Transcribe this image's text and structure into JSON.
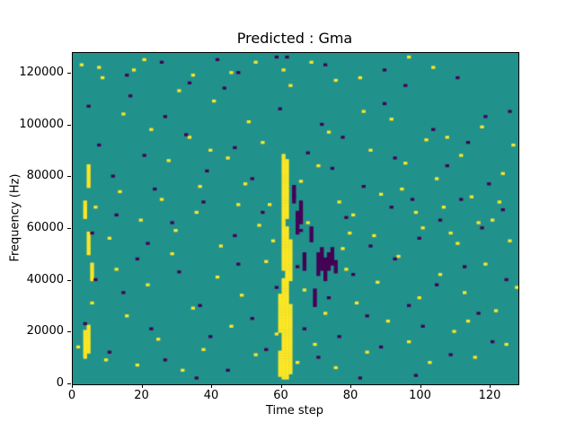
{
  "figure": {
    "title": "Predicted : Gma",
    "xlabel": "Time step",
    "ylabel": "Frequency (Hz)"
  },
  "chart_data": {
    "type": "heatmap",
    "title": "Predicted : Gma",
    "xlabel": "Time step",
    "ylabel": "Frequency (Hz)",
    "x_range": [
      0,
      128
    ],
    "y_range": [
      0,
      128000
    ],
    "x_ticks": [
      0,
      20,
      40,
      60,
      80,
      100,
      120
    ],
    "y_ticks": [
      0,
      20000,
      40000,
      60000,
      80000,
      100000,
      120000
    ],
    "grid": false,
    "legend": "none",
    "colors": {
      "background_value_color": "#21918c",
      "positive_color": "#fde725",
      "negative_color": "#440154",
      "figure_background": "#ffffff",
      "axis_color": "#000000"
    },
    "cell_grid": {
      "cols": 128,
      "rows": 128,
      "freq_per_row_hz": 1000
    },
    "yellow_runs": [
      {
        "x": 59,
        "y0": 3,
        "y1": 12
      },
      {
        "x": 59,
        "y0": 20,
        "y1": 34
      },
      {
        "x": 60,
        "y0": 2,
        "y1": 40
      },
      {
        "x": 60,
        "y0": 44,
        "y1": 88
      },
      {
        "x": 61,
        "y0": 2,
        "y1": 60
      },
      {
        "x": 61,
        "y0": 64,
        "y1": 86
      },
      {
        "x": 62,
        "y0": 4,
        "y1": 30
      },
      {
        "x": 62,
        "y0": 40,
        "y1": 55
      },
      {
        "x": 3,
        "y0": 10,
        "y1": 20
      },
      {
        "x": 4,
        "y0": 12,
        "y1": 22
      },
      {
        "x": 4,
        "y0": 50,
        "y1": 58
      },
      {
        "x": 3,
        "y0": 64,
        "y1": 70
      },
      {
        "x": 4,
        "y0": 76,
        "y1": 84
      },
      {
        "x": 5,
        "y0": 40,
        "y1": 46
      }
    ],
    "purple_runs": [
      {
        "x": 70,
        "y0": 42,
        "y1": 50
      },
      {
        "x": 71,
        "y0": 44,
        "y1": 52
      },
      {
        "x": 72,
        "y0": 40,
        "y1": 48
      },
      {
        "x": 73,
        "y0": 44,
        "y1": 50
      },
      {
        "x": 74,
        "y0": 46,
        "y1": 52
      },
      {
        "x": 75,
        "y0": 43,
        "y1": 47
      },
      {
        "x": 68,
        "y0": 55,
        "y1": 60
      },
      {
        "x": 69,
        "y0": 30,
        "y1": 36
      },
      {
        "x": 64,
        "y0": 58,
        "y1": 66
      },
      {
        "x": 65,
        "y0": 62,
        "y1": 70
      },
      {
        "x": 66,
        "y0": 44,
        "y1": 50
      },
      {
        "x": 63,
        "y0": 70,
        "y1": 76
      }
    ],
    "yellow_cells": [
      [
        2,
        123
      ],
      [
        8,
        118
      ],
      [
        14,
        104
      ],
      [
        17,
        121
      ],
      [
        22,
        98
      ],
      [
        27,
        86
      ],
      [
        30,
        113
      ],
      [
        33,
        95
      ],
      [
        36,
        76
      ],
      [
        40,
        109
      ],
      [
        44,
        87
      ],
      [
        47,
        69
      ],
      [
        50,
        101
      ],
      [
        54,
        93
      ],
      [
        57,
        55
      ],
      [
        65,
        78
      ],
      [
        67,
        62
      ],
      [
        70,
        84
      ],
      [
        73,
        97
      ],
      [
        76,
        70
      ],
      [
        79,
        58
      ],
      [
        82,
        118
      ],
      [
        85,
        90
      ],
      [
        88,
        73
      ],
      [
        91,
        102
      ],
      [
        95,
        85
      ],
      [
        98,
        66
      ],
      [
        101,
        94
      ],
      [
        104,
        79
      ],
      [
        108,
        58
      ],
      [
        111,
        88
      ],
      [
        114,
        72
      ],
      [
        117,
        99
      ],
      [
        120,
        63
      ],
      [
        123,
        81
      ],
      [
        126,
        92
      ],
      [
        1,
        14
      ],
      [
        5,
        31
      ],
      [
        9,
        9
      ],
      [
        12,
        44
      ],
      [
        15,
        26
      ],
      [
        18,
        7
      ],
      [
        21,
        38
      ],
      [
        24,
        17
      ],
      [
        28,
        50
      ],
      [
        31,
        5
      ],
      [
        34,
        29
      ],
      [
        37,
        13
      ],
      [
        41,
        41
      ],
      [
        45,
        22
      ],
      [
        48,
        34
      ],
      [
        52,
        11
      ],
      [
        55,
        47
      ],
      [
        58,
        19
      ],
      [
        64,
        8
      ],
      [
        66,
        36
      ],
      [
        69,
        15
      ],
      [
        72,
        27
      ],
      [
        75,
        6
      ],
      [
        78,
        44
      ],
      [
        81,
        31
      ],
      [
        84,
        12
      ],
      [
        87,
        39
      ],
      [
        90,
        24
      ],
      [
        93,
        49
      ],
      [
        96,
        16
      ],
      [
        99,
        33
      ],
      [
        102,
        8
      ],
      [
        105,
        42
      ],
      [
        109,
        20
      ],
      [
        112,
        35
      ],
      [
        115,
        10
      ],
      [
        118,
        46
      ],
      [
        121,
        28
      ],
      [
        124,
        15
      ],
      [
        127,
        37
      ],
      [
        6,
        68
      ],
      [
        10,
        56
      ],
      [
        13,
        74
      ],
      [
        19,
        63
      ],
      [
        25,
        71
      ],
      [
        29,
        59
      ],
      [
        35,
        66
      ],
      [
        42,
        53
      ],
      [
        49,
        77
      ],
      [
        53,
        61
      ],
      [
        56,
        69
      ],
      [
        77,
        52
      ],
      [
        80,
        65
      ],
      [
        86,
        57
      ],
      [
        94,
        75
      ],
      [
        100,
        60
      ],
      [
        106,
        68
      ],
      [
        110,
        54
      ],
      [
        116,
        62
      ],
      [
        122,
        70
      ],
      [
        125,
        55
      ],
      [
        45,
        120
      ],
      [
        60,
        121
      ],
      [
        62,
        115
      ],
      [
        68,
        124
      ],
      [
        75,
        117
      ],
      [
        103,
        122
      ],
      [
        34,
        119
      ],
      [
        20,
        125
      ],
      [
        96,
        126
      ],
      [
        52,
        124
      ],
      [
        7,
        122
      ],
      [
        39,
        90
      ],
      [
        83,
        105
      ],
      [
        113,
        24
      ],
      [
        107,
        95
      ]
    ],
    "purple_cells": [
      [
        4,
        107
      ],
      [
        7,
        92
      ],
      [
        11,
        80
      ],
      [
        16,
        111
      ],
      [
        20,
        88
      ],
      [
        23,
        75
      ],
      [
        26,
        103
      ],
      [
        32,
        96
      ],
      [
        38,
        82
      ],
      [
        43,
        114
      ],
      [
        46,
        91
      ],
      [
        51,
        79
      ],
      [
        59,
        106
      ],
      [
        63,
        72
      ],
      [
        67,
        89
      ],
      [
        71,
        100
      ],
      [
        74,
        83
      ],
      [
        77,
        95
      ],
      [
        83,
        76
      ],
      [
        89,
        108
      ],
      [
        92,
        87
      ],
      [
        97,
        71
      ],
      [
        103,
        98
      ],
      [
        107,
        84
      ],
      [
        113,
        93
      ],
      [
        119,
        77
      ],
      [
        125,
        105
      ],
      [
        3,
        23
      ],
      [
        6,
        40
      ],
      [
        10,
        12
      ],
      [
        14,
        35
      ],
      [
        18,
        48
      ],
      [
        22,
        21
      ],
      [
        26,
        9
      ],
      [
        30,
        43
      ],
      [
        36,
        30
      ],
      [
        39,
        18
      ],
      [
        44,
        5
      ],
      [
        47,
        46
      ],
      [
        51,
        25
      ],
      [
        55,
        13
      ],
      [
        58,
        37
      ],
      [
        64,
        45
      ],
      [
        66,
        21
      ],
      [
        70,
        10
      ],
      [
        73,
        33
      ],
      [
        76,
        18
      ],
      [
        80,
        42
      ],
      [
        84,
        26
      ],
      [
        88,
        14
      ],
      [
        92,
        48
      ],
      [
        96,
        30
      ],
      [
        100,
        22
      ],
      [
        104,
        38
      ],
      [
        108,
        11
      ],
      [
        112,
        45
      ],
      [
        116,
        27
      ],
      [
        120,
        16
      ],
      [
        124,
        40
      ],
      [
        5,
        58
      ],
      [
        12,
        65
      ],
      [
        21,
        54
      ],
      [
        28,
        62
      ],
      [
        37,
        70
      ],
      [
        46,
        57
      ],
      [
        54,
        66
      ],
      [
        65,
        59
      ],
      [
        78,
        64
      ],
      [
        85,
        53
      ],
      [
        91,
        68
      ],
      [
        99,
        56
      ],
      [
        105,
        63
      ],
      [
        111,
        71
      ],
      [
        117,
        60
      ],
      [
        123,
        67
      ],
      [
        25,
        124
      ],
      [
        47,
        120
      ],
      [
        58,
        126
      ],
      [
        89,
        121
      ],
      [
        110,
        118
      ],
      [
        33,
        116
      ],
      [
        72,
        123
      ],
      [
        95,
        115
      ],
      [
        15,
        119
      ],
      [
        41,
        125
      ],
      [
        82,
        2
      ],
      [
        98,
        3
      ],
      [
        35,
        2
      ],
      [
        61,
        126
      ],
      [
        118,
        103
      ]
    ]
  }
}
